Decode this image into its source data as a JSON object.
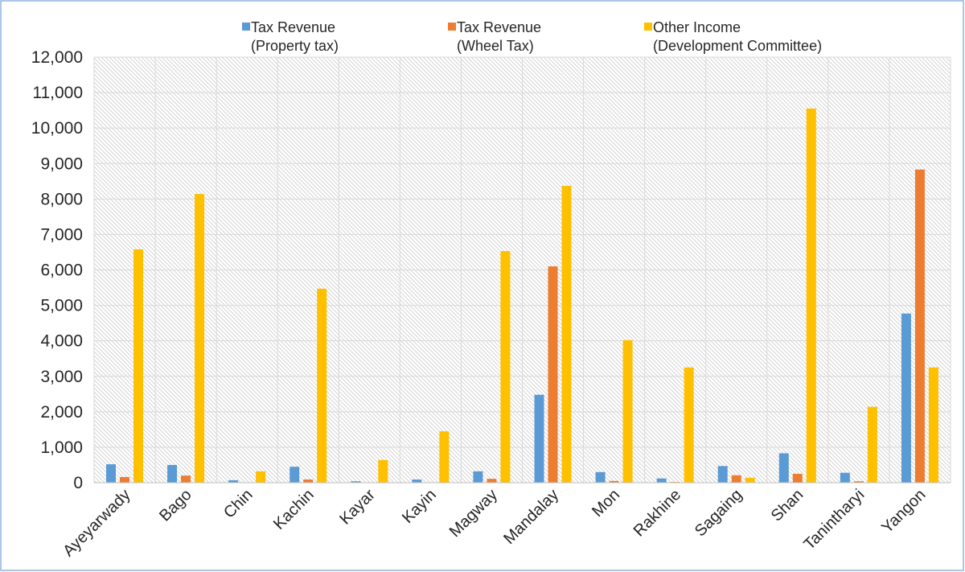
{
  "chart_data": {
    "type": "bar",
    "categories": [
      "Ayeyarwady",
      "Bago",
      "Chin",
      "Kachin",
      "Kayar",
      "Kayin",
      "Magway",
      "Mandalay",
      "Mon",
      "Rakhine",
      "Sagaing",
      "Shan",
      "Tanintharyi",
      "Yangon"
    ],
    "series": [
      {
        "name": "Tax Revenue (Property tax)",
        "color": "#5B9BD5",
        "values": [
          520,
          500,
          70,
          450,
          40,
          90,
          320,
          2480,
          300,
          120,
          470,
          830,
          280,
          4770
        ]
      },
      {
        "name": "Tax Revenue (Wheel Tax)",
        "color": "#ED7D31",
        "values": [
          160,
          200,
          10,
          90,
          5,
          10,
          110,
          6100,
          50,
          20,
          210,
          250,
          40,
          8830
        ]
      },
      {
        "name": "Other Income (Development Committee)",
        "color": "#FFC000",
        "values": [
          6580,
          8140,
          320,
          5470,
          640,
          1450,
          6530,
          8370,
          4020,
          3250,
          140,
          10550,
          2140,
          3250
        ]
      }
    ],
    "ylim": [
      0,
      12000
    ],
    "yticks": [
      0,
      1000,
      2000,
      3000,
      4000,
      5000,
      6000,
      7000,
      8000,
      9000,
      10000,
      11000,
      12000
    ],
    "ytick_labels": [
      "0",
      "1,000",
      "2,000",
      "3,000",
      "4,000",
      "5,000",
      "6,000",
      "7,000",
      "8,000",
      "9,000",
      "10,000",
      "11,000",
      "12,000"
    ],
    "grid": true,
    "legend": "top"
  }
}
